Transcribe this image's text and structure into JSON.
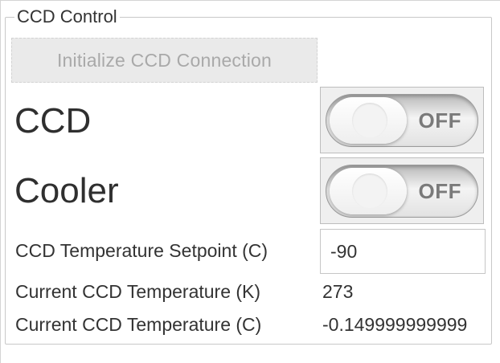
{
  "panel": {
    "title": "CCD Control",
    "initialize_button_label": "Initialize CCD Connection"
  },
  "ccd": {
    "label": "CCD",
    "toggle_state": "OFF"
  },
  "cooler": {
    "label": "Cooler",
    "toggle_state": "OFF"
  },
  "setpoint": {
    "label": "CCD Temperature Setpoint (C)",
    "value": "-90"
  },
  "current_k": {
    "label": "Current CCD Temperature (K)",
    "value": "273"
  },
  "current_c": {
    "label": "Current CCD Temperature (C)",
    "value": "-0.149999999999"
  },
  "colors": {
    "disabled_button_bg": "#eaeaea",
    "disabled_text": "#a9a9a9",
    "border": "#c8c8c8",
    "toggle_text": "#7a7a7a"
  },
  "icons": {
    "toggle_knob": "switch-knob"
  }
}
